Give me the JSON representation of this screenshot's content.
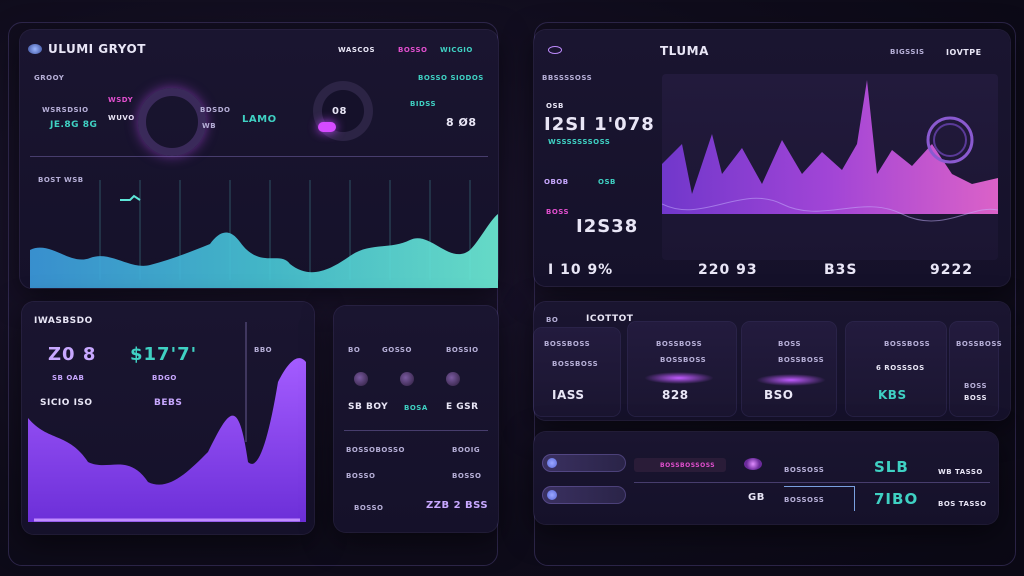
{
  "colors": {
    "accent_teal": "#3fd1c3",
    "accent_pink": "#e24fcf",
    "accent_violet": "#8b4dff",
    "bg": "#0f0c1b"
  },
  "left_dashboard": {
    "title": "ULUMI GRYOT",
    "header_right_a": "WASCOS",
    "header_right_b": "BOSSO",
    "header_right_c": "WICGIO",
    "subtitle": "GROOY",
    "sub_right": "BOSSO SIODOS",
    "stat1_label": "WSRSDSIO",
    "stat1_value": "JE.8G 8G",
    "stat2_label_a": "WSDY",
    "stat2_label_b": "WUVO",
    "stat3_label": "BDSDO",
    "stat3_a": "WB",
    "stat3_b": "LAMO",
    "stat4_value": "08",
    "stat5_label": "BIDSS",
    "stat5_value": "8 Ø8",
    "chart_label": "BOST WSB",
    "chart_icon": "chart-icon"
  },
  "volume_panel": {
    "title": "IWASBSDO",
    "value_a": "Z0 8",
    "value_b": "$17'7'",
    "label_a": "SB OAB",
    "label_b": "BDGO",
    "label_c": "SICIO ISO",
    "label_d": "BEBS",
    "label_e": "BBO"
  },
  "middle_panel": {
    "header_a": "BO",
    "header_b": "GOSSO",
    "header_c": "BOSSIO",
    "value_a": "SB BOY",
    "value_b": "BOSA",
    "value_c": "E GSR",
    "row1_label": "BOSSOBOSSO",
    "row1_right": "BOOIG",
    "row2_label": "BOSSO",
    "row2_right": "BOSSO",
    "footer_label": "BOSSO",
    "footer_value": "ZZB 2 BSS"
  },
  "right_dashboard": {
    "title": "TLUMA",
    "header_a": "BIGSSIS",
    "header_b": "IOVTPE",
    "section_label": "BBSSSSOSS",
    "value_main": "I2SI 1'078",
    "teal_label": "WSSSSSSSOSS",
    "label_a": "OSB",
    "label_b": "OBOB",
    "label_c": "OSB",
    "label_d": "BOSS",
    "value_second": "I2S38",
    "bottom_a": "I 10 9%",
    "bottom_b": "220 93",
    "bottom_c": "B3S",
    "bottom_d": "9222"
  },
  "right_cards": {
    "header_a": "BO",
    "header_b": "ICOTTOT",
    "cards": [
      {
        "label": "BOSSBOSS",
        "sub": "BOSSBOSS",
        "value": "IASS"
      },
      {
        "label": "BOSSBOSS",
        "sub": "BOSSBOSS",
        "value": "828"
      },
      {
        "label": "BOSS",
        "sub": "BOSSBOSS",
        "value": "BSO"
      },
      {
        "label": "BOSSBOSS",
        "sub": "6 ROSSSOS",
        "value": "KBS"
      },
      {
        "label": "BOSSBOSS",
        "sub": "BOSS",
        "value": "BOSS"
      }
    ]
  },
  "right_bottom": {
    "label_a": "BOSSBOSSOSS",
    "label_b": "BOSSOSS",
    "value_a": "SLB",
    "label_c": "WB TASSO",
    "label_d": "BOSSOSS",
    "value_b": "7IBO",
    "label_e": "BOS TASSO",
    "icon_value": "GB"
  }
}
